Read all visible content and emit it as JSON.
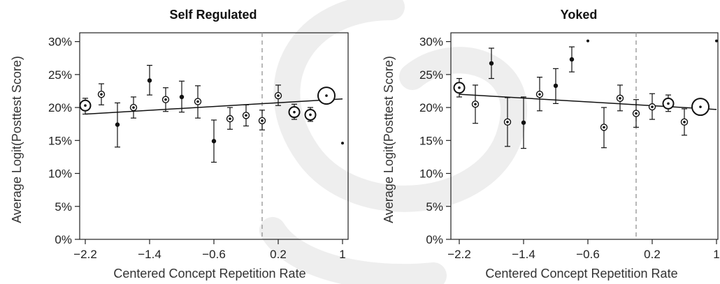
{
  "chart_data": [
    {
      "type": "scatter",
      "title": "Self Regulated",
      "xlabel": "Centered Concept Repetition Rate",
      "ylabel": "Average Logit(Posttest Score)",
      "xlim": [
        -2.25,
        1.0
      ],
      "ylim": [
        0,
        31
      ],
      "xticks": [
        -2.2,
        -1.4,
        -0.6,
        0.2,
        1
      ],
      "xtick_labels": [
        "−2.2",
        "−1.4",
        "−0.6",
        "0.2",
        "1"
      ],
      "yticks": [
        0,
        5,
        10,
        15,
        20,
        25,
        30
      ],
      "ytick_labels": [
        "0%",
        "5%",
        "10%",
        "15%",
        "20%",
        "25%",
        "30%"
      ],
      "reference_line_x": 0.0,
      "trend_line": [
        [
          -2.2,
          19.0
        ],
        [
          1.0,
          21.3
        ]
      ],
      "points": [
        {
          "x": -2.2,
          "y": 20.3,
          "lo": 19.0,
          "hi": 21.4,
          "size": 2
        },
        {
          "x": -2.0,
          "y": 22.0,
          "lo": 20.4,
          "hi": 23.6,
          "size": 1
        },
        {
          "x": -1.8,
          "y": 17.4,
          "lo": 14.0,
          "hi": 20.7,
          "size": 0
        },
        {
          "x": -1.6,
          "y": 20.0,
          "lo": 18.4,
          "hi": 21.6,
          "size": 1
        },
        {
          "x": -1.4,
          "y": 24.1,
          "lo": 21.9,
          "hi": 26.4,
          "size": 0
        },
        {
          "x": -1.2,
          "y": 21.2,
          "lo": 19.4,
          "hi": 23.0,
          "size": 1
        },
        {
          "x": -1.0,
          "y": 21.6,
          "lo": 19.3,
          "hi": 24.0,
          "size": 0
        },
        {
          "x": -0.8,
          "y": 20.9,
          "lo": 18.4,
          "hi": 23.3,
          "size": 1
        },
        {
          "x": -0.6,
          "y": 14.9,
          "lo": 11.7,
          "hi": 18.1,
          "size": 0
        },
        {
          "x": -0.4,
          "y": 18.3,
          "lo": 16.7,
          "hi": 20.0,
          "size": 1
        },
        {
          "x": -0.2,
          "y": 18.8,
          "lo": 17.2,
          "hi": 20.4,
          "size": 1
        },
        {
          "x": 0.0,
          "y": 18.0,
          "lo": 16.6,
          "hi": 19.6,
          "size": 1
        },
        {
          "x": 0.2,
          "y": 21.8,
          "lo": 20.3,
          "hi": 23.4,
          "size": 1
        },
        {
          "x": 0.4,
          "y": 19.3,
          "lo": 18.2,
          "hi": 20.5,
          "size": 2
        },
        {
          "x": 0.6,
          "y": 18.9,
          "lo": 17.9,
          "hi": 20.0,
          "size": 2
        },
        {
          "x": 0.8,
          "y": 21.8,
          "lo": 21.1,
          "hi": 22.6,
          "size": 3
        },
        {
          "x": 1.0,
          "y": 14.6,
          "lo": 14.6,
          "hi": 14.6,
          "size": 0
        }
      ]
    },
    {
      "type": "scatter",
      "title": "Yoked",
      "xlabel": "Centered Concept Repetition Rate",
      "ylabel": "Average Logit(Posttest Score)",
      "xlim": [
        -2.25,
        1.0
      ],
      "ylim": [
        0,
        31
      ],
      "xticks": [
        -2.2,
        -1.4,
        -0.6,
        0.2,
        1
      ],
      "xtick_labels": [
        "−2.2",
        "−1.4",
        "−0.6",
        "0.2",
        "1"
      ],
      "yticks": [
        0,
        5,
        10,
        15,
        20,
        25,
        30
      ],
      "ytick_labels": [
        "0%",
        "5%",
        "10%",
        "15%",
        "20%",
        "25%",
        "30%"
      ],
      "reference_line_x": 0.0,
      "trend_line": [
        [
          -2.2,
          22.0
        ],
        [
          1.0,
          19.7
        ]
      ],
      "points": [
        {
          "x": -2.2,
          "y": 23.0,
          "lo": 21.6,
          "hi": 24.4,
          "size": 2
        },
        {
          "x": -2.0,
          "y": 20.5,
          "lo": 17.6,
          "hi": 23.4,
          "size": 1
        },
        {
          "x": -1.8,
          "y": 26.7,
          "lo": 24.4,
          "hi": 29.0,
          "size": 0
        },
        {
          "x": -1.6,
          "y": 17.8,
          "lo": 14.1,
          "hi": 21.5,
          "size": 1
        },
        {
          "x": -1.4,
          "y": 17.7,
          "lo": 13.8,
          "hi": 21.6,
          "size": 0
        },
        {
          "x": -1.2,
          "y": 22.0,
          "lo": 19.5,
          "hi": 24.6,
          "size": 1
        },
        {
          "x": -1.0,
          "y": 23.3,
          "lo": 20.6,
          "hi": 25.9,
          "size": 0
        },
        {
          "x": -0.8,
          "y": 27.3,
          "lo": 25.4,
          "hi": 29.2,
          "size": 0
        },
        {
          "x": -0.6,
          "y": 30.1,
          "lo": 30.1,
          "hi": 30.1,
          "size": 0
        },
        {
          "x": -0.4,
          "y": 17.0,
          "lo": 13.9,
          "hi": 20.0,
          "size": 1
        },
        {
          "x": -0.2,
          "y": 21.4,
          "lo": 19.5,
          "hi": 23.4,
          "size": 1
        },
        {
          "x": 0.0,
          "y": 19.1,
          "lo": 17.0,
          "hi": 21.2,
          "size": 1
        },
        {
          "x": 0.2,
          "y": 20.1,
          "lo": 18.2,
          "hi": 22.1,
          "size": 1
        },
        {
          "x": 0.4,
          "y": 20.6,
          "lo": 19.4,
          "hi": 21.9,
          "size": 2
        },
        {
          "x": 0.6,
          "y": 17.8,
          "lo": 15.8,
          "hi": 19.8,
          "size": 1
        },
        {
          "x": 0.8,
          "y": 20.1,
          "lo": 19.2,
          "hi": 21.0,
          "size": 3
        },
        {
          "x": 1.0,
          "y": 30.1,
          "lo": 30.1,
          "hi": 30.1,
          "size": 0
        }
      ]
    }
  ],
  "colors": {
    "line": "#111111",
    "axis": "#222222",
    "reference": "#999999",
    "watermark": "#eeeeee"
  }
}
